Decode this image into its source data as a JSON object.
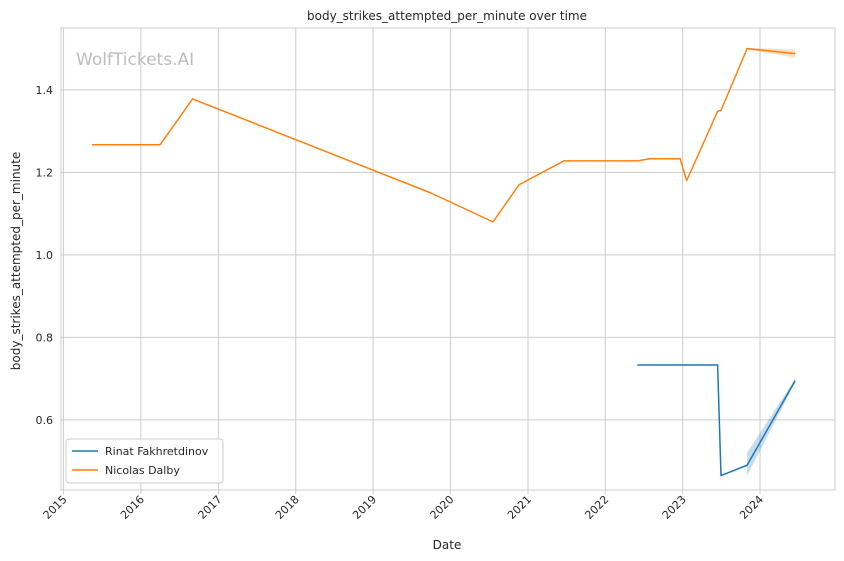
{
  "chart_data": {
    "type": "line",
    "title": "body_strikes_attempted_per_minute over time",
    "xlabel": "Date",
    "ylabel": "body_strikes_attempted_per_minute",
    "watermark": "WolfTickets.AI",
    "x_range": [
      "2014-12-20",
      "2024-12-20"
    ],
    "ylim": [
      0.43,
      1.55
    ],
    "x_ticks": [
      "2015",
      "2016",
      "2017",
      "2018",
      "2019",
      "2020",
      "2021",
      "2022",
      "2023",
      "2024"
    ],
    "y_ticks": [
      0.6,
      0.8,
      1.0,
      1.2,
      1.4
    ],
    "grid": true,
    "legend": "lower-left",
    "series": [
      {
        "name": "Rinat Fakhretdinov",
        "color": "#1f77b4",
        "points": [
          {
            "x": "2022-06-01",
            "y": 0.733
          },
          {
            "x": "2023-06-15",
            "y": 0.733
          },
          {
            "x": "2023-07-01",
            "y": 0.465
          },
          {
            "x": "2023-11-01",
            "y": 0.49
          },
          {
            "x": "2024-06-15",
            "y": 0.695
          }
        ],
        "band": [
          {
            "x": "2023-11-01",
            "lo": 0.465,
            "hi": 0.52
          },
          {
            "x": "2024-06-15",
            "lo": 0.69,
            "hi": 0.7
          }
        ]
      },
      {
        "name": "Nicolas Dalby",
        "color": "#ff7f0e",
        "points": [
          {
            "x": "2015-05-15",
            "y": 1.267
          },
          {
            "x": "2016-04-01",
            "y": 1.267
          },
          {
            "x": "2016-09-01",
            "y": 1.378
          },
          {
            "x": "2019-10-01",
            "y": 1.15
          },
          {
            "x": "2020-07-20",
            "y": 1.08
          },
          {
            "x": "2020-11-20",
            "y": 1.17
          },
          {
            "x": "2021-06-20",
            "y": 1.228
          },
          {
            "x": "2022-06-01",
            "y": 1.228
          },
          {
            "x": "2022-08-01",
            "y": 1.233
          },
          {
            "x": "2022-12-20",
            "y": 1.233
          },
          {
            "x": "2023-01-20",
            "y": 1.18
          },
          {
            "x": "2023-06-15",
            "y": 1.348
          },
          {
            "x": "2023-07-01",
            "y": 1.35
          },
          {
            "x": "2023-11-01",
            "y": 1.5
          },
          {
            "x": "2024-06-15",
            "y": 1.488
          }
        ],
        "band": [
          {
            "x": "2023-11-01",
            "lo": 1.498,
            "hi": 1.502
          },
          {
            "x": "2024-06-15",
            "lo": 1.478,
            "hi": 1.498
          }
        ]
      }
    ]
  }
}
